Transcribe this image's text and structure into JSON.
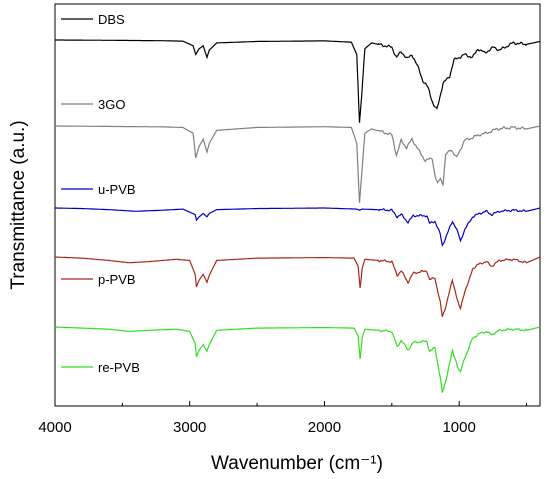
{
  "chart_data": {
    "type": "line",
    "xlabel": "Wavenumber (cm⁻¹)",
    "ylabel": "Transmittance (a.u.)",
    "xlim": [
      4000,
      400
    ],
    "x_reversed": true,
    "x_ticks": [
      4000,
      3000,
      2000,
      1000
    ],
    "x_tick_labels": [
      "4000",
      "3000",
      "2000",
      "1000"
    ],
    "y_ticks_shown": false,
    "grid": false,
    "legend_placement": "each series labelled at left above its trace",
    "series": [
      {
        "name": "DBS",
        "color": "#000000",
        "baseline": 0.0,
        "points": [
          [
            4000,
            0
          ],
          [
            3600,
            0.02
          ],
          [
            3200,
            0.05
          ],
          [
            3050,
            0.08
          ],
          [
            2975,
            0.4
          ],
          [
            2955,
            1.0
          ],
          [
            2930,
            0.6
          ],
          [
            2900,
            0.4
          ],
          [
            2872,
            1.2
          ],
          [
            2855,
            0.7
          ],
          [
            2800,
            0.2
          ],
          [
            2500,
            0.1
          ],
          [
            2000,
            0.06
          ],
          [
            1800,
            0.15
          ],
          [
            1760,
            1.0
          ],
          [
            1740,
            5.7
          ],
          [
            1725,
            4.0
          ],
          [
            1700,
            0.6
          ],
          [
            1650,
            0.2
          ],
          [
            1500,
            0.5
          ],
          [
            1465,
            1.2
          ],
          [
            1430,
            0.8
          ],
          [
            1385,
            1.3
          ],
          [
            1350,
            1.0
          ],
          [
            1300,
            2.0
          ],
          [
            1270,
            2.8
          ],
          [
            1230,
            3.3
          ],
          [
            1190,
            4.5
          ],
          [
            1165,
            4.8
          ],
          [
            1150,
            4.2
          ],
          [
            1120,
            3.0
          ],
          [
            1070,
            2.5
          ],
          [
            1040,
            1.4
          ],
          [
            960,
            1.0
          ],
          [
            900,
            1.2
          ],
          [
            860,
            0.6
          ],
          [
            810,
            0.9
          ],
          [
            745,
            0.5
          ],
          [
            700,
            0.7
          ],
          [
            600,
            0.2
          ],
          [
            500,
            0.3
          ],
          [
            400,
            0.1
          ]
        ]
      },
      {
        "name": "3GO",
        "color": "#808080",
        "baseline": 0.0,
        "points": [
          [
            4000,
            0
          ],
          [
            3600,
            0.03
          ],
          [
            3200,
            0.06
          ],
          [
            3050,
            0.1
          ],
          [
            2975,
            0.5
          ],
          [
            2955,
            2.2
          ],
          [
            2930,
            1.4
          ],
          [
            2900,
            0.9
          ],
          [
            2872,
            1.8
          ],
          [
            2855,
            1.2
          ],
          [
            2800,
            0.3
          ],
          [
            2500,
            0.1
          ],
          [
            2000,
            0.05
          ],
          [
            1800,
            0.1
          ],
          [
            1760,
            1.2
          ],
          [
            1740,
            5.3
          ],
          [
            1725,
            3.5
          ],
          [
            1700,
            0.5
          ],
          [
            1650,
            0.2
          ],
          [
            1500,
            0.6
          ],
          [
            1465,
            2.0
          ],
          [
            1430,
            1.0
          ],
          [
            1390,
            1.5
          ],
          [
            1350,
            0.9
          ],
          [
            1300,
            1.7
          ],
          [
            1250,
            2.4
          ],
          [
            1200,
            2.2
          ],
          [
            1180,
            3.4
          ],
          [
            1160,
            4.0
          ],
          [
            1140,
            3.6
          ],
          [
            1120,
            4.0
          ],
          [
            1100,
            2.0
          ],
          [
            1060,
            1.6
          ],
          [
            1020,
            2.2
          ],
          [
            960,
            1.0
          ],
          [
            900,
            0.8
          ],
          [
            850,
            0.6
          ],
          [
            800,
            0.5
          ],
          [
            720,
            0.2
          ],
          [
            600,
            0.1
          ],
          [
            500,
            0.2
          ],
          [
            400,
            0.0
          ]
        ]
      },
      {
        "name": "u-PVB",
        "color": "#0000cc",
        "baseline": 0.0,
        "points": [
          [
            4000,
            0
          ],
          [
            3800,
            0.05
          ],
          [
            3600,
            0.15
          ],
          [
            3400,
            0.3
          ],
          [
            3200,
            0.2
          ],
          [
            3050,
            0.1
          ],
          [
            2960,
            0.6
          ],
          [
            2950,
            1.1
          ],
          [
            2930,
            0.8
          ],
          [
            2900,
            0.5
          ],
          [
            2872,
            0.8
          ],
          [
            2855,
            0.5
          ],
          [
            2800,
            0.15
          ],
          [
            2500,
            0.05
          ],
          [
            2000,
            0.0
          ],
          [
            1760,
            0.1
          ],
          [
            1740,
            0.2
          ],
          [
            1720,
            0.1
          ],
          [
            1500,
            0.2
          ],
          [
            1460,
            0.8
          ],
          [
            1430,
            0.6
          ],
          [
            1380,
            1.3
          ],
          [
            1340,
            0.7
          ],
          [
            1240,
            0.7
          ],
          [
            1220,
            1.4
          ],
          [
            1180,
            1.2
          ],
          [
            1140,
            2.4
          ],
          [
            1125,
            3.4
          ],
          [
            1110,
            3.0
          ],
          [
            1080,
            2.1
          ],
          [
            1050,
            1.2
          ],
          [
            1020,
            1.9
          ],
          [
            1000,
            2.6
          ],
          [
            990,
            3.0
          ],
          [
            960,
            2.0
          ],
          [
            930,
            1.4
          ],
          [
            900,
            0.8
          ],
          [
            850,
            0.5
          ],
          [
            800,
            0.3
          ],
          [
            760,
            0.6
          ],
          [
            700,
            0.3
          ],
          [
            600,
            0.2
          ],
          [
            500,
            0.3
          ],
          [
            400,
            0.0
          ]
        ]
      },
      {
        "name": "p-PVB",
        "color": "#a52a1a",
        "baseline": 0.0,
        "points": [
          [
            4000,
            0
          ],
          [
            3800,
            0.1
          ],
          [
            3600,
            0.3
          ],
          [
            3450,
            0.5
          ],
          [
            3300,
            0.4
          ],
          [
            3100,
            0.2
          ],
          [
            3000,
            0.3
          ],
          [
            2960,
            1.5
          ],
          [
            2950,
            2.6
          ],
          [
            2930,
            2.0
          ],
          [
            2900,
            1.5
          ],
          [
            2872,
            2.2
          ],
          [
            2855,
            1.6
          ],
          [
            2800,
            0.3
          ],
          [
            2500,
            0.1
          ],
          [
            2000,
            0.05
          ],
          [
            1780,
            0.1
          ],
          [
            1750,
            0.8
          ],
          [
            1735,
            2.7
          ],
          [
            1720,
            1.0
          ],
          [
            1700,
            0.2
          ],
          [
            1500,
            0.4
          ],
          [
            1460,
            1.6
          ],
          [
            1430,
            1.2
          ],
          [
            1380,
            2.2
          ],
          [
            1340,
            1.4
          ],
          [
            1240,
            1.2
          ],
          [
            1220,
            2.0
          ],
          [
            1180,
            1.8
          ],
          [
            1140,
            4.0
          ],
          [
            1125,
            5.2
          ],
          [
            1110,
            4.7
          ],
          [
            1080,
            3.4
          ],
          [
            1050,
            2.0
          ],
          [
            1020,
            3.4
          ],
          [
            1000,
            4.3
          ],
          [
            990,
            4.5
          ],
          [
            960,
            3.0
          ],
          [
            930,
            2.2
          ],
          [
            900,
            1.0
          ],
          [
            850,
            0.6
          ],
          [
            800,
            0.4
          ],
          [
            760,
            0.8
          ],
          [
            700,
            0.3
          ],
          [
            600,
            0.2
          ],
          [
            500,
            0.5
          ],
          [
            400,
            0.0
          ]
        ]
      },
      {
        "name": "re-PVB",
        "color": "#33dd22",
        "baseline": 0.0,
        "points": [
          [
            4000,
            0
          ],
          [
            3800,
            0.1
          ],
          [
            3600,
            0.2
          ],
          [
            3450,
            0.4
          ],
          [
            3300,
            0.3
          ],
          [
            3100,
            0.2
          ],
          [
            3000,
            0.4
          ],
          [
            2960,
            1.5
          ],
          [
            2950,
            2.7
          ],
          [
            2930,
            2.1
          ],
          [
            2900,
            1.6
          ],
          [
            2872,
            2.2
          ],
          [
            2855,
            1.6
          ],
          [
            2800,
            0.3
          ],
          [
            2500,
            0.1
          ],
          [
            2000,
            0.05
          ],
          [
            1780,
            0.1
          ],
          [
            1750,
            0.8
          ],
          [
            1735,
            2.9
          ],
          [
            1720,
            1.0
          ],
          [
            1700,
            0.2
          ],
          [
            1500,
            0.4
          ],
          [
            1460,
            1.8
          ],
          [
            1430,
            1.2
          ],
          [
            1380,
            2.1
          ],
          [
            1340,
            1.4
          ],
          [
            1240,
            1.3
          ],
          [
            1220,
            2.2
          ],
          [
            1180,
            1.9
          ],
          [
            1140,
            4.6
          ],
          [
            1125,
            6.0
          ],
          [
            1110,
            5.4
          ],
          [
            1080,
            3.8
          ],
          [
            1050,
            2.2
          ],
          [
            1020,
            3.2
          ],
          [
            1000,
            4.0
          ],
          [
            990,
            4.1
          ],
          [
            960,
            2.8
          ],
          [
            930,
            2.0
          ],
          [
            900,
            1.0
          ],
          [
            850,
            0.6
          ],
          [
            800,
            0.4
          ],
          [
            760,
            0.7
          ],
          [
            700,
            0.3
          ],
          [
            600,
            0.2
          ],
          [
            500,
            0.3
          ],
          [
            400,
            0.0
          ]
        ]
      }
    ]
  }
}
